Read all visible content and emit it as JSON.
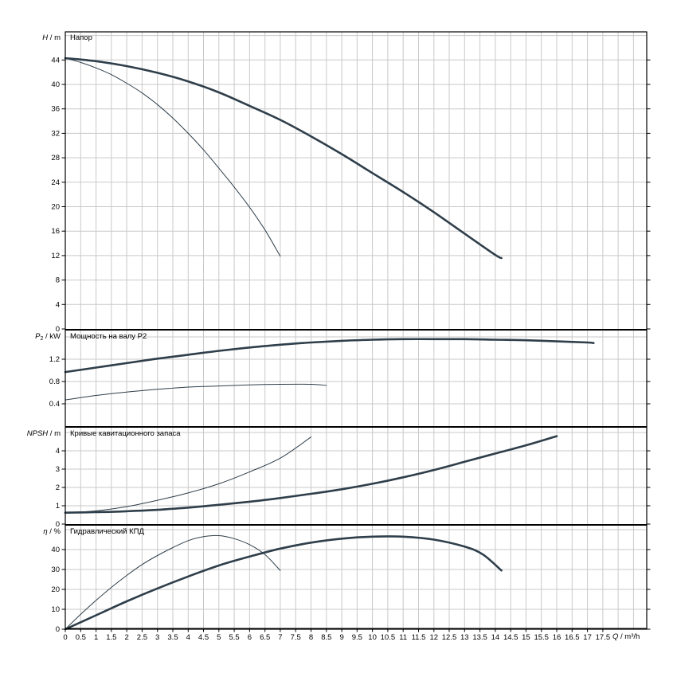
{
  "chart_data": {
    "type": "line",
    "x_axis": {
      "label_var": "Q",
      "label_unit": " / m³/h",
      "min": 0,
      "max": 18.93,
      "grid_step": 0.5,
      "tick_step": 0.5,
      "tick_labels": [
        "0",
        "0.5",
        "1",
        "1.5",
        "2",
        "2.5",
        "3",
        "3.5",
        "4",
        "4.5",
        "5",
        "5.5",
        "6",
        "6.5",
        "7",
        "7.5",
        "8",
        "8.5",
        "9",
        "9.5",
        "10",
        "10.5",
        "11",
        "11.5",
        "12",
        "12.5",
        "13",
        "13.5",
        "14",
        "14.5",
        "15",
        "15.5",
        "16",
        "16.5",
        "17",
        "17.5"
      ]
    },
    "panels": [
      {
        "title": "Напор",
        "y_label_var": "H",
        "y_label_sub": "",
        "y_label_unit": " / m",
        "y_min": 0,
        "y_max": 48.6,
        "y_tick_step": 4,
        "y_tick_labels": [
          0,
          4,
          8,
          12,
          16,
          20,
          24,
          28,
          32,
          36,
          40,
          44
        ],
        "series": [
          {
            "name": "head-curve-thick",
            "stroke_width": 2.6,
            "points": [
              [
                0,
                44.3
              ],
              [
                1,
                43.8
              ],
              [
                2,
                43
              ],
              [
                3,
                41.9
              ],
              [
                4,
                40.5
              ],
              [
                5,
                38.7
              ],
              [
                6,
                36.5
              ],
              [
                7,
                34.2
              ],
              [
                8,
                31.5
              ],
              [
                9,
                28.6
              ],
              [
                10,
                25.5
              ],
              [
                11,
                22.4
              ],
              [
                12,
                19.1
              ],
              [
                13,
                15.6
              ],
              [
                14,
                12.1
              ],
              [
                14.2,
                11.6
              ]
            ]
          },
          {
            "name": "head-curve-thin",
            "stroke_width": 1,
            "points": [
              [
                0,
                44.3
              ],
              [
                0.5,
                43.6
              ],
              [
                1,
                42.7
              ],
              [
                1.5,
                41.6
              ],
              [
                2,
                40.2
              ],
              [
                2.5,
                38.6
              ],
              [
                3,
                36.7
              ],
              [
                3.5,
                34.5
              ],
              [
                4,
                32
              ],
              [
                4.5,
                29.3
              ],
              [
                5,
                26.3
              ],
              [
                5.5,
                23.2
              ],
              [
                6,
                19.9
              ],
              [
                6.5,
                16.2
              ],
              [
                7,
                11.9
              ]
            ]
          }
        ]
      },
      {
        "title": "Мощность на валу P2",
        "y_label_var": "P",
        "y_label_sub": "2",
        "y_label_unit": " / kW",
        "y_min": 0,
        "y_max": 1.714,
        "y_tick_step": 0.4,
        "y_tick_labels": [
          0.4,
          0.8,
          1.2
        ],
        "series": [
          {
            "name": "power-curve-thick",
            "stroke_width": 2.6,
            "points": [
              [
                0,
                0.97
              ],
              [
                1,
                1.05
              ],
              [
                2,
                1.13
              ],
              [
                3,
                1.21
              ],
              [
                4,
                1.28
              ],
              [
                5,
                1.35
              ],
              [
                6,
                1.41
              ],
              [
                7,
                1.46
              ],
              [
                8,
                1.5
              ],
              [
                9,
                1.53
              ],
              [
                10,
                1.55
              ],
              [
                11,
                1.56
              ],
              [
                12,
                1.56
              ],
              [
                13,
                1.56
              ],
              [
                14,
                1.55
              ],
              [
                15,
                1.54
              ],
              [
                16,
                1.52
              ],
              [
                17,
                1.5
              ],
              [
                17.2,
                1.49
              ]
            ]
          },
          {
            "name": "power-curve-thin",
            "stroke_width": 1,
            "points": [
              [
                0,
                0.47
              ],
              [
                1,
                0.55
              ],
              [
                2,
                0.61
              ],
              [
                3,
                0.66
              ],
              [
                4,
                0.7
              ],
              [
                5,
                0.72
              ],
              [
                6,
                0.74
              ],
              [
                7,
                0.75
              ],
              [
                8,
                0.75
              ],
              [
                8.5,
                0.73
              ]
            ]
          }
        ]
      },
      {
        "title": "Кривые кавитационного запаса",
        "y_label_var": "NPSH",
        "y_label_sub": "",
        "y_label_unit": " / m",
        "y_min": 0,
        "y_max": 5.26,
        "y_tick_step": 1,
        "y_tick_labels": [
          0,
          1,
          2,
          3,
          4
        ],
        "series": [
          {
            "name": "npsh-curve-thick",
            "stroke_width": 2.6,
            "points": [
              [
                0,
                0.62
              ],
              [
                1,
                0.65
              ],
              [
                2,
                0.7
              ],
              [
                3,
                0.78
              ],
              [
                4,
                0.9
              ],
              [
                5,
                1.05
              ],
              [
                6,
                1.22
              ],
              [
                7,
                1.42
              ],
              [
                8,
                1.65
              ],
              [
                9,
                1.9
              ],
              [
                10,
                2.2
              ],
              [
                11,
                2.55
              ],
              [
                12,
                2.95
              ],
              [
                13,
                3.4
              ],
              [
                14,
                3.85
              ],
              [
                15,
                4.3
              ],
              [
                16,
                4.8
              ]
            ]
          },
          {
            "name": "npsh-curve-thin",
            "stroke_width": 1,
            "points": [
              [
                0,
                0.62
              ],
              [
                1,
                0.72
              ],
              [
                2,
                0.95
              ],
              [
                3,
                1.3
              ],
              [
                4,
                1.7
              ],
              [
                5,
                2.2
              ],
              [
                6,
                2.85
              ],
              [
                7,
                3.6
              ],
              [
                8,
                4.75
              ]
            ]
          }
        ]
      },
      {
        "title": "Гидравлический КПД",
        "y_label_var": "η",
        "y_label_sub": "",
        "y_label_unit": " / %",
        "y_min": 0,
        "y_max": 52,
        "y_tick_step": 10,
        "y_tick_labels": [
          0,
          10,
          20,
          30,
          40
        ],
        "series": [
          {
            "name": "efficiency-curve-thick",
            "stroke_width": 2.6,
            "points": [
              [
                0,
                0
              ],
              [
                1,
                7
              ],
              [
                2,
                14
              ],
              [
                3,
                20.5
              ],
              [
                4,
                26.5
              ],
              [
                5,
                32
              ],
              [
                6,
                36.5
              ],
              [
                7,
                40.5
              ],
              [
                8,
                43.5
              ],
              [
                9,
                45.5
              ],
              [
                10,
                46.5
              ],
              [
                11,
                46.5
              ],
              [
                12,
                45
              ],
              [
                13,
                41.5
              ],
              [
                13.6,
                37.5
              ],
              [
                14.2,
                29.5
              ]
            ]
          },
          {
            "name": "efficiency-curve-thin",
            "stroke_width": 1,
            "points": [
              [
                0,
                0
              ],
              [
                0.5,
                7.5
              ],
              [
                1,
                14.5
              ],
              [
                1.5,
                21
              ],
              [
                2,
                27
              ],
              [
                2.5,
                32.5
              ],
              [
                3,
                37
              ],
              [
                3.5,
                41
              ],
              [
                4,
                44.5
              ],
              [
                4.5,
                46.5
              ],
              [
                5,
                47
              ],
              [
                5.5,
                45.5
              ],
              [
                6,
                42.5
              ],
              [
                6.5,
                37.5
              ],
              [
                7,
                29.5
              ]
            ]
          }
        ]
      }
    ],
    "colors": {
      "curve": "#2e3e4a",
      "grid": "#c9c9c9",
      "axis": "#000000"
    }
  }
}
